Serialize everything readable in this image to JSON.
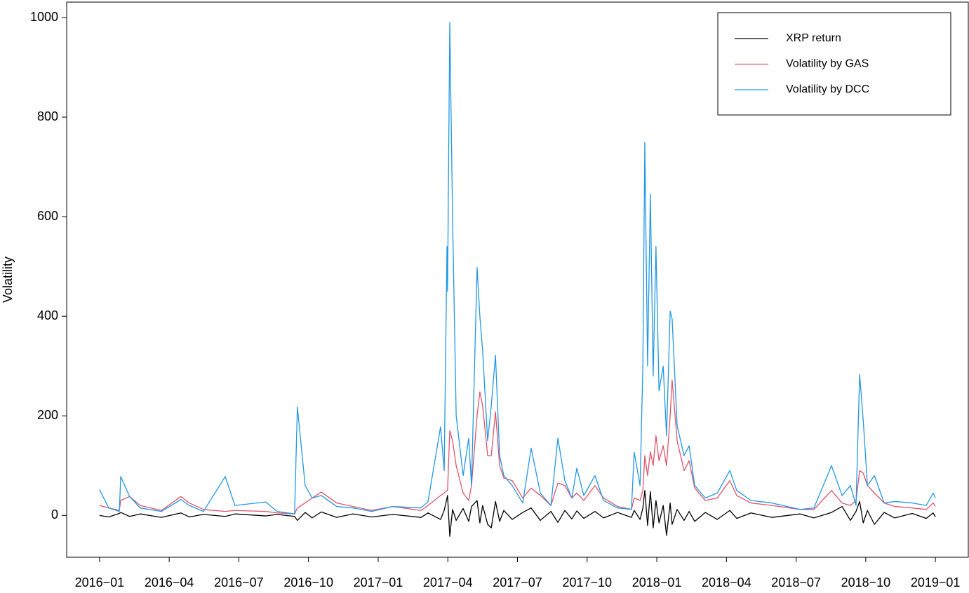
{
  "chart_data": {
    "type": "line",
    "y_label": "Volatility",
    "x": [
      2016.0,
      2016.033,
      2016.071,
      2016.076,
      2016.108,
      2016.146,
      2016.222,
      2016.292,
      2016.322,
      2016.373,
      2016.451,
      2016.486,
      2016.597,
      2016.637,
      2016.7,
      2016.71,
      2016.738,
      2016.763,
      2016.796,
      2016.851,
      2016.909,
      2016.977,
      2017.053,
      2017.154,
      2017.179,
      2017.224,
      2017.237,
      2017.247,
      2017.249,
      2017.257,
      2017.267,
      2017.28,
      2017.305,
      2017.325,
      2017.335,
      2017.355,
      2017.365,
      2017.375,
      2017.393,
      2017.406,
      2017.421,
      2017.436,
      2017.451,
      2017.481,
      2017.519,
      2017.549,
      2017.582,
      2017.62,
      2017.645,
      2017.67,
      2017.695,
      2017.713,
      2017.738,
      2017.778,
      2017.809,
      2017.859,
      2017.909,
      2017.919,
      2017.94,
      2017.95,
      2017.957,
      2017.967,
      2017.977,
      2017.987,
      2017.997,
      2018.008,
      2018.023,
      2018.035,
      2018.048,
      2018.055,
      2018.073,
      2018.098,
      2018.116,
      2018.136,
      2018.174,
      2018.217,
      2018.262,
      2018.287,
      2018.338,
      2018.413,
      2018.514,
      2018.564,
      2018.627,
      2018.665,
      2018.695,
      2018.715,
      2018.728,
      2018.741,
      2018.756,
      2018.781,
      2018.816,
      2018.854,
      2018.917,
      2018.967,
      2018.992,
      2019.0
    ],
    "series": [
      {
        "name": "XRP return",
        "color": "#000000",
        "values": [
          0,
          -3,
          4,
          6,
          -2,
          3,
          -4,
          5,
          -3,
          2,
          -2,
          3,
          -1,
          2,
          -2,
          -10,
          6,
          -5,
          7,
          -4,
          3,
          -3,
          2,
          -4,
          5,
          -8,
          10,
          35,
          40,
          -42,
          12,
          -10,
          14,
          -12,
          18,
          30,
          -15,
          20,
          -18,
          -25,
          28,
          -12,
          10,
          -8,
          6,
          15,
          -10,
          8,
          -14,
          10,
          -7,
          9,
          -6,
          8,
          -5,
          6,
          -4,
          10,
          -8,
          15,
          50,
          -20,
          48,
          -25,
          30,
          -15,
          20,
          -40,
          25,
          -18,
          12,
          -10,
          8,
          -12,
          6,
          -8,
          10,
          -6,
          5,
          -4,
          3,
          -5,
          6,
          18,
          -10,
          8,
          28,
          -15,
          10,
          -18,
          6,
          -5,
          4,
          -6,
          5,
          -3
        ]
      },
      {
        "name": "Volatility by GAS",
        "color": "#DF536B",
        "values": [
          20,
          15,
          10,
          30,
          38,
          20,
          10,
          38,
          25,
          12,
          8,
          10,
          8,
          5,
          3,
          15,
          25,
          35,
          47,
          25,
          18,
          10,
          18,
          10,
          20,
          40,
          45,
          50,
          50,
          170,
          150,
          100,
          45,
          30,
          60,
          200,
          248,
          220,
          120,
          120,
          208,
          100,
          75,
          70,
          35,
          55,
          40,
          20,
          65,
          60,
          35,
          45,
          30,
          60,
          35,
          18,
          12,
          35,
          30,
          50,
          120,
          80,
          128,
          100,
          160,
          110,
          140,
          100,
          200,
          272,
          150,
          90,
          110,
          55,
          30,
          35,
          70,
          40,
          25,
          20,
          12,
          12,
          50,
          25,
          20,
          30,
          90,
          85,
          60,
          45,
          25,
          18,
          15,
          12,
          25,
          18
        ]
      },
      {
        "name": "Volatility by DCC",
        "color": "#2297E6",
        "values": [
          52,
          15,
          8,
          78,
          38,
          15,
          8,
          32,
          20,
          8,
          78,
          20,
          27,
          8,
          3,
          218,
          60,
          35,
          40,
          18,
          15,
          8,
          18,
          15,
          28,
          178,
          90,
          540,
          450,
          990,
          600,
          200,
          80,
          155,
          60,
          498,
          400,
          330,
          150,
          220,
          322,
          120,
          80,
          60,
          25,
          135,
          45,
          20,
          155,
          70,
          35,
          95,
          40,
          80,
          30,
          15,
          12,
          127,
          60,
          300,
          750,
          300,
          645,
          280,
          540,
          250,
          300,
          160,
          410,
          395,
          180,
          120,
          140,
          60,
          35,
          45,
          90,
          50,
          30,
          25,
          12,
          15,
          100,
          40,
          60,
          20,
          283,
          190,
          60,
          80,
          25,
          28,
          25,
          20,
          45,
          35
        ]
      }
    ],
    "xlim": [
      2015.882,
      2019.118
    ],
    "xticks": [
      {
        "value": 2016.0,
        "label": "2016−01"
      },
      {
        "value": 2016.25,
        "label": "2016−04"
      },
      {
        "value": 2016.5,
        "label": "2016−07"
      },
      {
        "value": 2016.75,
        "label": "2016−10"
      },
      {
        "value": 2017.0,
        "label": "2017−01"
      },
      {
        "value": 2017.25,
        "label": "2017−04"
      },
      {
        "value": 2017.5,
        "label": "2017−07"
      },
      {
        "value": 2017.75,
        "label": "2017−10"
      },
      {
        "value": 2018.0,
        "label": "2018−01"
      },
      {
        "value": 2018.25,
        "label": "2018−04"
      },
      {
        "value": 2018.5,
        "label": "2018−07"
      },
      {
        "value": 2018.75,
        "label": "2018−10"
      },
      {
        "value": 2019.0,
        "label": "2019−01"
      }
    ],
    "ylim": [
      -84,
      1031
    ],
    "yticks": [
      0,
      200,
      400,
      600,
      800,
      1000
    ],
    "grid": false,
    "legend": "top-right"
  }
}
